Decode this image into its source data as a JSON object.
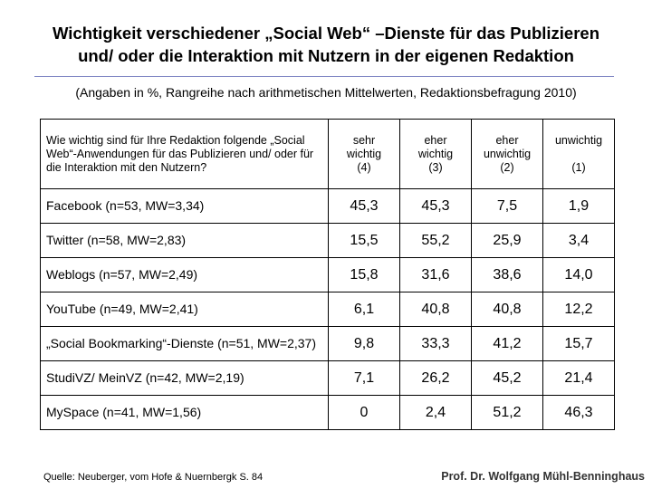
{
  "title": {
    "line1": "Wichtigkeit verschiedener „Social Web“ –Dienste für das Publizieren",
    "line2": "und/ oder die Interaktion mit Nutzern in der eigenen Redaktion"
  },
  "subtitle": "(Angaben in %, Rangreihe nach arithmetischen Mittelwerten, Redaktionsbefragung 2010)",
  "table": {
    "question": "Wie wichtig sind für Ihre Redaktion folgende „Social Web“-Anwendungen für das Publizieren und/ oder für die Interaktion mit den Nutzern?",
    "columns": [
      "sehr\nwichtig\n(4)",
      "eher\nwichtig\n(3)",
      "eher\nunwichtig\n(2)",
      "unwichtig\n\n(1)"
    ],
    "rows": [
      {
        "label": "Facebook (n=53, MW=3,34)",
        "values": [
          "45,3",
          "45,3",
          "7,5",
          "1,9"
        ]
      },
      {
        "label": "Twitter (n=58, MW=2,83)",
        "values": [
          "15,5",
          "55,2",
          "25,9",
          "3,4"
        ]
      },
      {
        "label": "Weblogs (n=57, MW=2,49)",
        "values": [
          "15,8",
          "31,6",
          "38,6",
          "14,0"
        ]
      },
      {
        "label": "YouTube (n=49, MW=2,41)",
        "values": [
          "6,1",
          "40,8",
          "40,8",
          "12,2"
        ]
      },
      {
        "label": "„Social Bookmarking“-Dienste (n=51, MW=2,37)",
        "values": [
          "9,8",
          "33,3",
          "41,2",
          "15,7"
        ]
      },
      {
        "label": "StudiVZ/ MeinVZ (n=42, MW=2,19)",
        "values": [
          "7,1",
          "26,2",
          "45,2",
          "21,4"
        ]
      },
      {
        "label": "MySpace (n=41, MW=1,56)",
        "values": [
          "0",
          "2,4",
          "51,2",
          "46,3"
        ]
      }
    ]
  },
  "footer": {
    "source": "Quelle: Neuberger, vom Hofe & Nuernbergk S. 84",
    "author": "Prof. Dr. Wolfgang Mühl-Benninghaus"
  }
}
